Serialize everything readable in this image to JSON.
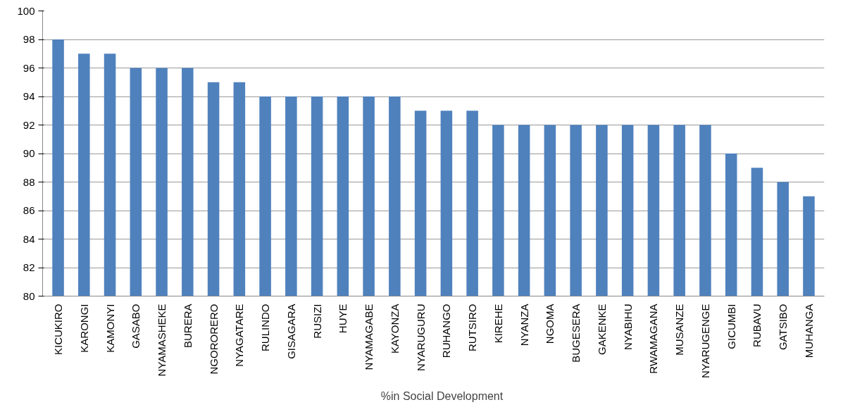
{
  "chart_data": {
    "type": "bar",
    "categories": [
      "KICUKIRO",
      "KARONGI",
      "KAMONYI",
      "GASABO",
      "NYAMASHEKE",
      "BURERA",
      "NGORORERO",
      "NYAGATARE",
      "RULINDO",
      "GISAGARA",
      "RUSIZI",
      "HUYE",
      "NYAMAGABE",
      "KAYONZA",
      "NYARUGURU",
      "RUHANGO",
      "RUTSIRO",
      "KIREHE",
      "NYANZA",
      "NGOMA",
      "BUGESERA",
      "GAKENKE",
      "NYABIHU",
      "RWAMAGANA",
      "MUSANZE",
      "NYARUGENGE",
      "GICUMBI",
      "RUBAVU",
      "GATSIBO",
      "MUHANGA"
    ],
    "series": [
      {
        "name": "%in Social Development",
        "color": "#4f81bd",
        "values": [
          98,
          97,
          97,
          96,
          96,
          96,
          95,
          95,
          94,
          94,
          94,
          94,
          94,
          94,
          93,
          93,
          93,
          92,
          92,
          92,
          92,
          92,
          92,
          92,
          92,
          92,
          90,
          89,
          88,
          87
        ]
      }
    ],
    "ylim": [
      80,
      100
    ],
    "yticks": [
      80,
      82,
      84,
      86,
      88,
      90,
      92,
      94,
      96,
      98,
      100
    ],
    "grid": "y",
    "legend": "bottom"
  }
}
